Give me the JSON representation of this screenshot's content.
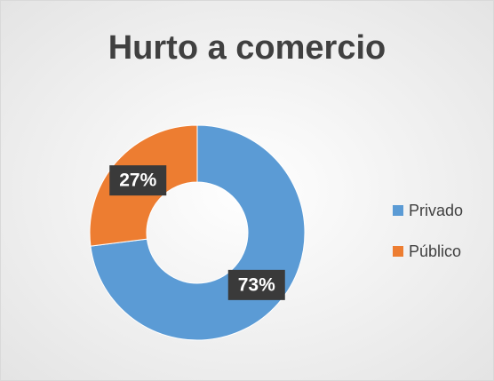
{
  "chart_data": {
    "type": "doughnut",
    "title": "Hurto a comercio",
    "categories": [
      "Privado",
      "Público"
    ],
    "values": [
      73,
      27
    ],
    "value_labels": [
      "73%",
      "27%"
    ],
    "colors": [
      "#5b9bd5",
      "#ed7d31"
    ],
    "legend": "right"
  }
}
